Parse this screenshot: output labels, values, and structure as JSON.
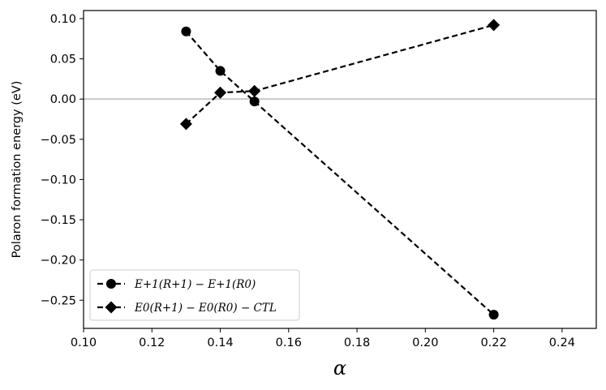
{
  "chart_data": {
    "type": "line",
    "xlabel": "α",
    "ylabel": "Polaron formation energy (eV)",
    "xlim": [
      0.1,
      0.25
    ],
    "ylim": [
      -0.285,
      0.11
    ],
    "xticks": [
      0.1,
      0.12,
      0.14,
      0.16,
      0.18,
      0.2,
      0.22,
      0.24
    ],
    "xtick_labels": [
      "0.10",
      "0.12",
      "0.14",
      "0.16",
      "0.18",
      "0.20",
      "0.22",
      "0.24"
    ],
    "yticks": [
      0.1,
      0.05,
      0.0,
      -0.05,
      -0.1,
      -0.15,
      -0.2,
      -0.25
    ],
    "ytick_labels": [
      "0.10",
      "0.05",
      "0.00",
      "−0.05",
      "−0.10",
      "−0.15",
      "−0.20",
      "−0.25"
    ],
    "reference_line": {
      "y": 0.0,
      "color": "#c8c8c8"
    },
    "legend_position": "bottom-left",
    "series": [
      {
        "name": "E+1(R+1) − E+1(R0)",
        "marker": "circle",
        "linestyle": "dashed",
        "color": "#000000",
        "x": [
          0.13,
          0.14,
          0.15,
          0.22
        ],
        "y": [
          0.084,
          0.035,
          -0.003,
          -0.268
        ]
      },
      {
        "name": "E0(R+1) − E0(R0) − CTL",
        "marker": "diamond",
        "linestyle": "dashed",
        "color": "#000000",
        "x": [
          0.13,
          0.14,
          0.15,
          0.22
        ],
        "y": [
          -0.031,
          0.008,
          0.01,
          0.092
        ]
      }
    ]
  }
}
